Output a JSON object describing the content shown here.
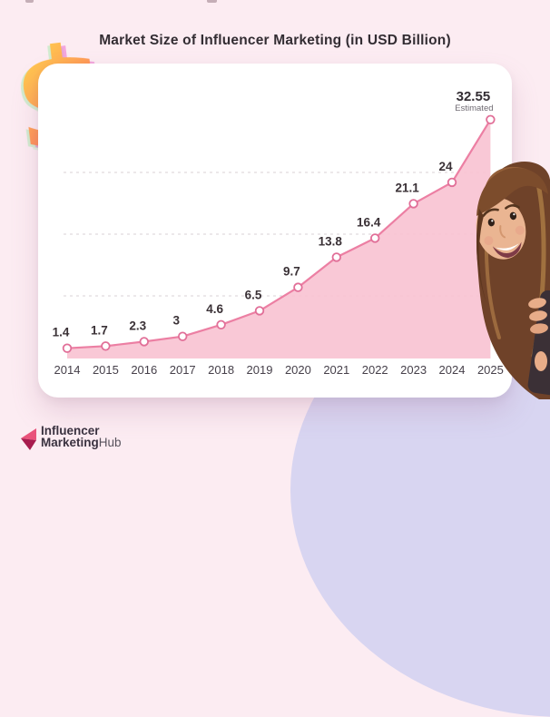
{
  "page": {
    "background_color": "#fcecf2",
    "accent_blob_color": "#d8d5f1",
    "card_color": "#ffffff"
  },
  "chart_data": {
    "type": "area",
    "title": "Market Size of Influencer Marketing (in USD Billion)",
    "categories": [
      "2014",
      "2015",
      "2016",
      "2017",
      "2018",
      "2019",
      "2020",
      "2021",
      "2022",
      "2023",
      "2024",
      "2025"
    ],
    "values": [
      1.4,
      1.7,
      2.3,
      3,
      4.6,
      6.5,
      9.7,
      13.8,
      16.4,
      21.1,
      24,
      32.55
    ],
    "value_labels": [
      "1.4",
      "1.7",
      "2.3",
      "3",
      "4.6",
      "6.5",
      "9.7",
      "13.8",
      "16.4",
      "21.1",
      "24",
      "32.55"
    ],
    "last_point_note": "Estimated",
    "xlabel": "",
    "ylabel": "",
    "ylim": [
      0,
      34
    ],
    "grid": "horizontal-dashed",
    "legend": "none",
    "line_color": "#ec7fa3",
    "fill_color": "#f9c3d3",
    "marker_fill": "#ffffff",
    "marker_stroke": "#e16f98",
    "gridline_color": "#d8d0d4",
    "label_color": "#3a3136",
    "axis_label_color": "#46404a",
    "note_color": "#6f6a72"
  },
  "logo": {
    "word1": "Influencer",
    "word2": "Marketing",
    "word3": "Hub",
    "brand_color": "#e9527a",
    "brand_dark_color": "#a81c4e"
  },
  "decor": {
    "dollar_glyph": "$"
  }
}
